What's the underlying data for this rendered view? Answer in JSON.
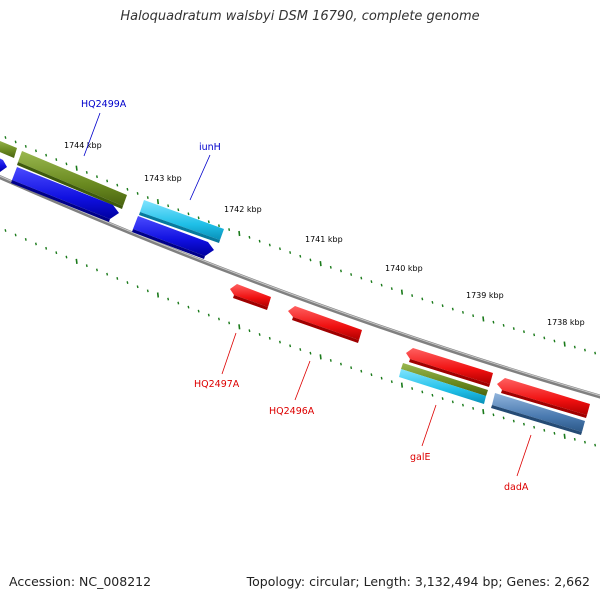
{
  "title": "Haloquadratum walsbyi DSM 16790, complete genome",
  "footer": {
    "accession": "Accession: NC_008212",
    "summary": "Topology: circular; Length: 3,132,494 bp; Genes: 2,662"
  },
  "colors": {
    "backbone": "#808080",
    "tick": "#1a7a1a",
    "forward_label": "#0000cc",
    "reverse_label": "#dd0000",
    "blue_gene": "#1010e0",
    "cyan_gene": "#20c0e8",
    "olive_gene": "#6a8a20",
    "red_gene": "#f01010",
    "steel_gene": "#4a7ab0"
  },
  "scale_labels": [
    "1744 kbp",
    "1743 kbp",
    "1742 kbp",
    "1741 kbp",
    "1740 kbp",
    "1739 kbp",
    "1738 kbp"
  ],
  "gene_labels": {
    "HQ2499A": "HQ2499A",
    "iunH": "iunH",
    "HQ2497A": "HQ2497A",
    "HQ2496A": "HQ2496A",
    "galE": "galE",
    "dadA": "dadA"
  }
}
